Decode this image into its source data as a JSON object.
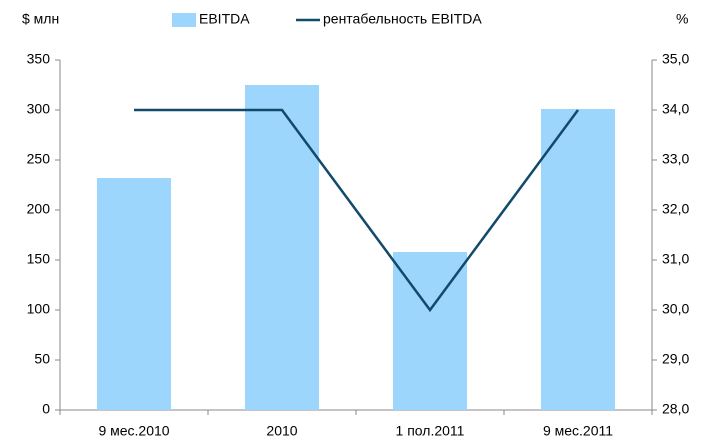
{
  "chart_data": {
    "type": "bar",
    "y_axis_label": "$ млн",
    "y2_axis_label": "%",
    "categories": [
      "9 мес.2010",
      "2010",
      "1 пол.2011",
      "9 мес.2011"
    ],
    "series": [
      {
        "name": "EBITDA",
        "type": "bar",
        "color": "#9dd6fc",
        "values": [
          232,
          325,
          158,
          301
        ]
      },
      {
        "name": "рентабельность EBITDA",
        "type": "line",
        "axis": "y2",
        "color": "#114a6b",
        "values": [
          34.0,
          34.0,
          30.0,
          34.0
        ]
      }
    ],
    "ylim": [
      0,
      350
    ],
    "yticks": [
      0,
      50,
      100,
      150,
      200,
      250,
      300,
      350
    ],
    "y2lim": [
      28,
      35
    ],
    "y2ticks": [
      {
        "value": 28,
        "label": "28,0"
      },
      {
        "value": 29,
        "label": "29,0"
      },
      {
        "value": 30,
        "label": "30,0"
      },
      {
        "value": 31,
        "label": "31,0"
      },
      {
        "value": 32,
        "label": "32,0"
      },
      {
        "value": 33,
        "label": "33,0"
      },
      {
        "value": 34,
        "label": "34,0"
      },
      {
        "value": 35,
        "label": "35,0"
      }
    ],
    "grid": false
  }
}
